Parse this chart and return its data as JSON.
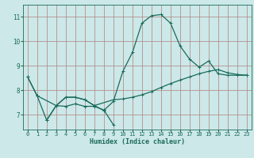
{
  "xlabel": "Humidex (Indice chaleur)",
  "bg_color": "#cce8e8",
  "grid_color": "#b08080",
  "line_color": "#1a6b5a",
  "xlim": [
    -0.5,
    23.5
  ],
  "ylim": [
    6.4,
    11.5
  ],
  "yticks": [
    7,
    8,
    9,
    10,
    11
  ],
  "xticks": [
    0,
    1,
    2,
    3,
    4,
    5,
    6,
    7,
    8,
    9,
    10,
    11,
    12,
    13,
    14,
    15,
    16,
    17,
    18,
    19,
    20,
    21,
    22,
    23
  ],
  "series1_x": [
    0,
    1,
    2,
    3,
    4,
    5,
    6,
    7,
    8,
    9,
    10,
    11,
    12,
    13,
    14,
    15,
    16,
    17,
    18,
    19,
    20,
    21,
    22,
    23
  ],
  "series1_y": [
    8.55,
    7.78,
    6.78,
    7.38,
    7.72,
    7.72,
    7.62,
    7.38,
    7.18,
    7.55,
    8.78,
    9.55,
    10.75,
    11.05,
    11.1,
    10.75,
    9.82,
    9.28,
    8.95,
    9.2,
    8.68,
    8.62,
    8.62,
    8.62
  ],
  "series2_x": [
    0,
    1,
    3,
    4,
    5,
    6,
    7,
    9,
    10,
    11,
    12,
    13,
    14,
    15,
    16,
    17,
    18,
    19,
    20,
    21,
    22,
    23
  ],
  "series2_y": [
    8.55,
    7.78,
    7.38,
    7.72,
    7.72,
    7.62,
    7.38,
    7.62,
    7.65,
    7.72,
    7.82,
    7.95,
    8.12,
    8.28,
    8.42,
    8.55,
    8.68,
    8.78,
    8.85,
    8.72,
    8.65,
    8.62
  ],
  "series3_x": [
    2,
    3,
    4,
    5,
    6,
    7,
    8,
    9
  ],
  "series3_y": [
    6.78,
    7.38,
    7.35,
    7.45,
    7.35,
    7.35,
    7.2,
    6.6
  ]
}
